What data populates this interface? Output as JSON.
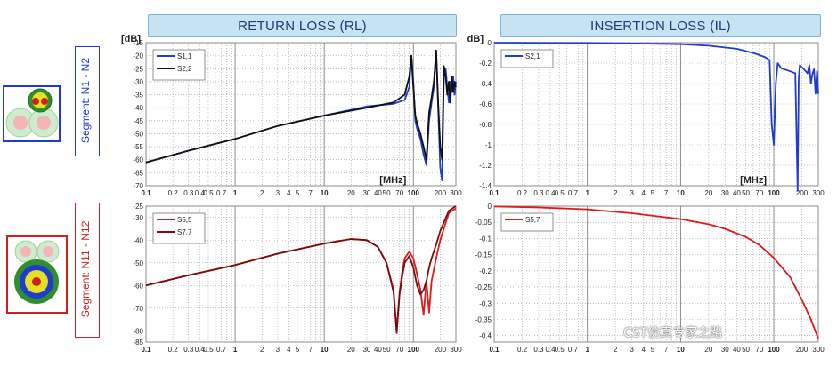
{
  "headers": {
    "rl": "RETURN LOSS (RL)",
    "il": "INSERTION LOSS (IL)"
  },
  "segments": [
    {
      "label": "Segment: N1 - N2",
      "color": "#1f3bd0"
    },
    {
      "label": "Segment: N11 - N12",
      "color": "#d01f1f"
    }
  ],
  "watermark": "CST仿真专家之路",
  "chart_data": [
    {
      "id": "rl_n1n2",
      "type": "line",
      "unit_y": "[dB]",
      "unit_x": "[MHz]",
      "xscale": "log",
      "xlim": [
        0.1,
        300
      ],
      "ylim": [
        -70,
        -15
      ],
      "x_ticks": [
        "0.1",
        "0.2",
        "0.3",
        "0.4",
        "0.5",
        "0.7",
        "1",
        "2",
        "3",
        "4",
        "5",
        "7",
        "10",
        "20",
        "30",
        "40",
        "50",
        "70",
        "100",
        "200",
        "300"
      ],
      "y_ticks": [
        -15,
        -20,
        -25,
        -30,
        -35,
        -40,
        -45,
        -50,
        -55,
        -60,
        -65,
        -70
      ],
      "legend": "top-left",
      "series": [
        {
          "name": "S1,1",
          "color": "#1f3bd0",
          "x": [
            0.1,
            0.3,
            1,
            3,
            10,
            30,
            60,
            80,
            90,
            95,
            100,
            105,
            110,
            120,
            130,
            140,
            150,
            160,
            170,
            180,
            190,
            200,
            210,
            220,
            230,
            240,
            250,
            260,
            270,
            280,
            290,
            300
          ],
          "y": [
            -61,
            -56.5,
            -52,
            -47,
            -43,
            -39.5,
            -38.5,
            -37,
            -32,
            -20,
            -30,
            -45,
            -48,
            -52,
            -58,
            -62,
            -45,
            -38,
            -32,
            -18,
            -40,
            -63,
            -68,
            -28,
            -25,
            -32,
            -38,
            -30,
            -34,
            -28,
            -35,
            -30
          ]
        },
        {
          "name": "S2,2",
          "color": "#111111",
          "x": [
            0.1,
            0.3,
            1,
            3,
            10,
            30,
            60,
            80,
            90,
            95,
            100,
            105,
            110,
            120,
            130,
            140,
            150,
            160,
            170,
            180,
            190,
            200,
            210,
            220,
            230,
            240,
            250,
            260,
            270,
            280,
            290,
            300
          ],
          "y": [
            -61,
            -56.5,
            -52,
            -47,
            -43,
            -40,
            -38,
            -35,
            -28,
            -20,
            -32,
            -43,
            -46,
            -50,
            -55,
            -60,
            -42,
            -36,
            -30,
            -18,
            -38,
            -55,
            -60,
            -24,
            -28,
            -35,
            -30,
            -38,
            -28,
            -34,
            -30,
            -32
          ]
        }
      ]
    },
    {
      "id": "il_n1n2",
      "type": "line",
      "unit_y": "[dB]",
      "unit_x": "[MHz]",
      "xscale": "log",
      "xlim": [
        0.1,
        300
      ],
      "ylim": [
        -1.4,
        0
      ],
      "x_ticks": [
        "0.1",
        "0.2",
        "0.3",
        "0.4",
        "0.5",
        "0.7",
        "1",
        "2",
        "3",
        "4",
        "5",
        "7",
        "10",
        "20",
        "30",
        "40",
        "50",
        "70",
        "100",
        "200",
        "300"
      ],
      "y_ticks": [
        "0",
        "-0.2",
        "-0.4",
        "-0.6",
        "-0.8",
        "-1",
        "-1.2",
        "-1.4"
      ],
      "y_tick_values": [
        0,
        -0.2,
        -0.4,
        -0.6,
        -0.8,
        -1,
        -1.2,
        -1.4
      ],
      "legend": "top-left",
      "series": [
        {
          "name": "S2,1",
          "color": "#1f3bd0",
          "x": [
            0.1,
            1,
            3,
            10,
            20,
            40,
            60,
            80,
            90,
            95,
            100,
            105,
            110,
            120,
            150,
            170,
            180,
            185,
            190,
            200,
            210,
            220,
            230,
            240,
            250,
            260,
            270,
            280,
            290,
            300
          ],
          "y": [
            0,
            -0.003,
            -0.008,
            -0.015,
            -0.03,
            -0.06,
            -0.1,
            -0.14,
            -0.17,
            -0.8,
            -1.0,
            -0.4,
            -0.2,
            -0.25,
            -0.28,
            -0.3,
            -1.45,
            -0.35,
            -0.22,
            -0.24,
            -0.26,
            -0.28,
            -0.3,
            -0.22,
            -0.4,
            -0.3,
            -0.26,
            -0.5,
            -0.28,
            -0.5
          ]
        }
      ]
    },
    {
      "id": "rl_n11n12",
      "type": "line",
      "unit_y": "",
      "unit_x": "",
      "xscale": "log",
      "xlim": [
        0.1,
        300
      ],
      "ylim": [
        -85,
        -25
      ],
      "x_ticks": [
        "0.1",
        "0.2",
        "0.3",
        "0.4",
        "0.5",
        "0.7",
        "1",
        "2",
        "3",
        "4",
        "5",
        "7",
        "10",
        "20",
        "30",
        "40",
        "50",
        "70",
        "100",
        "200",
        "300"
      ],
      "y_ticks": [
        -25,
        -30,
        -40,
        -50,
        -60,
        -70,
        -80,
        -85
      ],
      "legend": "top-left",
      "series": [
        {
          "name": "S5,5",
          "color": "#e01818",
          "x": [
            0.1,
            0.3,
            1,
            3,
            10,
            20,
            30,
            40,
            50,
            60,
            65,
            70,
            75,
            80,
            90,
            100,
            110,
            120,
            130,
            140,
            150,
            160,
            180,
            200,
            250,
            300
          ],
          "y": [
            -60,
            -55.5,
            -51,
            -46,
            -41.5,
            -39.5,
            -40,
            -43,
            -50,
            -62,
            -80,
            -63,
            -54,
            -48,
            -45,
            -48,
            -55,
            -62,
            -73,
            -58,
            -72,
            -58,
            -48,
            -40,
            -28,
            -26
          ]
        },
        {
          "name": "S7,7",
          "color": "#7a0c0c",
          "x": [
            0.1,
            0.3,
            1,
            3,
            10,
            20,
            30,
            40,
            50,
            60,
            65,
            70,
            75,
            80,
            90,
            100,
            110,
            120,
            130,
            140,
            150,
            160,
            180,
            200,
            250,
            300
          ],
          "y": [
            -60,
            -55.5,
            -51,
            -46,
            -41.5,
            -39.5,
            -40,
            -43,
            -50,
            -63,
            -81,
            -64,
            -56,
            -50,
            -47,
            -52,
            -60,
            -64,
            -62,
            -58,
            -52,
            -48,
            -42,
            -36,
            -27,
            -25
          ]
        }
      ]
    },
    {
      "id": "il_n11n12",
      "type": "line",
      "unit_y": "",
      "unit_x": "",
      "xscale": "log",
      "xlim": [
        0.1,
        300
      ],
      "ylim": [
        -0.42,
        0
      ],
      "x_ticks": [
        "0.1",
        "0.2",
        "0.3",
        "0.4",
        "0.5",
        "0.7",
        "1",
        "2",
        "3",
        "4",
        "5",
        "7",
        "10",
        "20",
        "30",
        "40",
        "50",
        "70",
        "100",
        "200",
        "300"
      ],
      "y_ticks": [
        "0",
        "-0.05",
        "-0.1",
        "-0.15",
        "-0.2",
        "-0.25",
        "-0.3",
        "-0.35",
        "-0.4"
      ],
      "y_tick_values": [
        0,
        -0.05,
        -0.1,
        -0.15,
        -0.2,
        -0.25,
        -0.3,
        -0.35,
        -0.4
      ],
      "legend": "top-left",
      "series": [
        {
          "name": "S5,7",
          "color": "#e01818",
          "x": [
            0.1,
            0.3,
            1,
            3,
            10,
            20,
            30,
            50,
            70,
            100,
            150,
            200,
            250,
            300
          ],
          "y": [
            -0.001,
            -0.004,
            -0.01,
            -0.022,
            -0.04,
            -0.056,
            -0.07,
            -0.095,
            -0.12,
            -0.16,
            -0.22,
            -0.29,
            -0.35,
            -0.41
          ]
        }
      ]
    }
  ]
}
